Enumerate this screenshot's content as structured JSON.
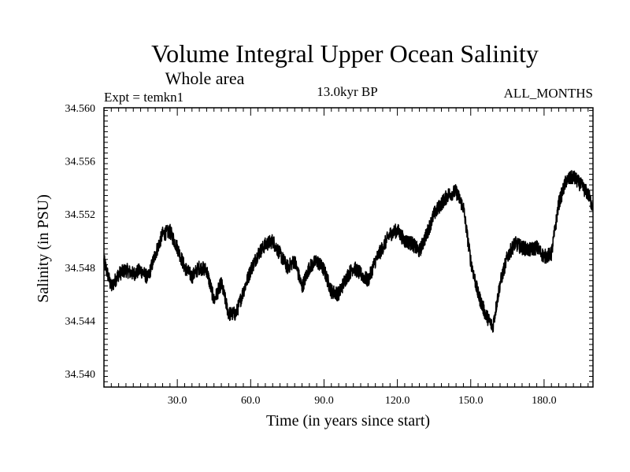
{
  "chart_data": {
    "type": "line",
    "title": "Volume Integral Upper Ocean Salinity",
    "subtitle": "Whole area",
    "experiment_label": "Expt = temkn1",
    "period_label": "13.0kyr BP",
    "months_label": "ALL_MONTHS",
    "xlabel": "Time (in years since start)",
    "ylabel": "Salinity (in PSU)",
    "xlim": [
      0,
      200
    ],
    "ylim": [
      34.539,
      34.56
    ],
    "x_ticks": [
      30,
      60,
      90,
      120,
      150,
      180
    ],
    "x_tick_labels": [
      "30.0",
      "60.0",
      "90.0",
      "120.0",
      "150.0",
      "180.0"
    ],
    "y_ticks": [
      34.54,
      34.544,
      34.548,
      34.552,
      34.556,
      34.56
    ],
    "y_tick_labels": [
      "34.540",
      "34.544",
      "34.548",
      "34.552",
      "34.556",
      "34.560"
    ],
    "series": [
      {
        "name": "salinity",
        "color": "#000000",
        "x": [
          0,
          3,
          6,
          9,
          12,
          15,
          18,
          21,
          24,
          27,
          30,
          33,
          36,
          39,
          42,
          45,
          48,
          51,
          54,
          57,
          60,
          63,
          66,
          69,
          72,
          75,
          78,
          81,
          84,
          87,
          90,
          93,
          96,
          99,
          102,
          105,
          108,
          111,
          114,
          117,
          120,
          123,
          126,
          129,
          132,
          135,
          138,
          141,
          144,
          147,
          150,
          153,
          156,
          159,
          162,
          165,
          168,
          171,
          174,
          177,
          180,
          183,
          186,
          189,
          192,
          195,
          198,
          200
        ],
        "y": [
          34.5485,
          34.5465,
          34.5475,
          34.5478,
          34.5475,
          34.5478,
          34.5472,
          34.549,
          34.5505,
          34.5507,
          34.5495,
          34.548,
          34.5473,
          34.548,
          34.5478,
          34.5455,
          34.5468,
          34.5445,
          34.5445,
          34.5462,
          34.5478,
          34.549,
          34.5497,
          34.55,
          34.549,
          34.548,
          34.5485,
          34.5465,
          34.548,
          34.5485,
          34.5478,
          34.5462,
          34.546,
          34.5472,
          34.548,
          34.5475,
          34.547,
          34.5485,
          34.5495,
          34.5505,
          34.5508,
          34.55,
          34.5498,
          34.5492,
          34.5505,
          34.552,
          34.5528,
          34.5535,
          34.5537,
          34.5525,
          34.5485,
          34.546,
          34.5445,
          34.5435,
          34.5468,
          34.5488,
          34.5498,
          34.5495,
          34.5493,
          34.5495,
          34.5488,
          34.549,
          34.5528,
          34.5545,
          34.5548,
          34.5542,
          34.5535,
          34.5525
        ]
      }
    ],
    "line_visual_noise_amplitude": 0.0011
  }
}
